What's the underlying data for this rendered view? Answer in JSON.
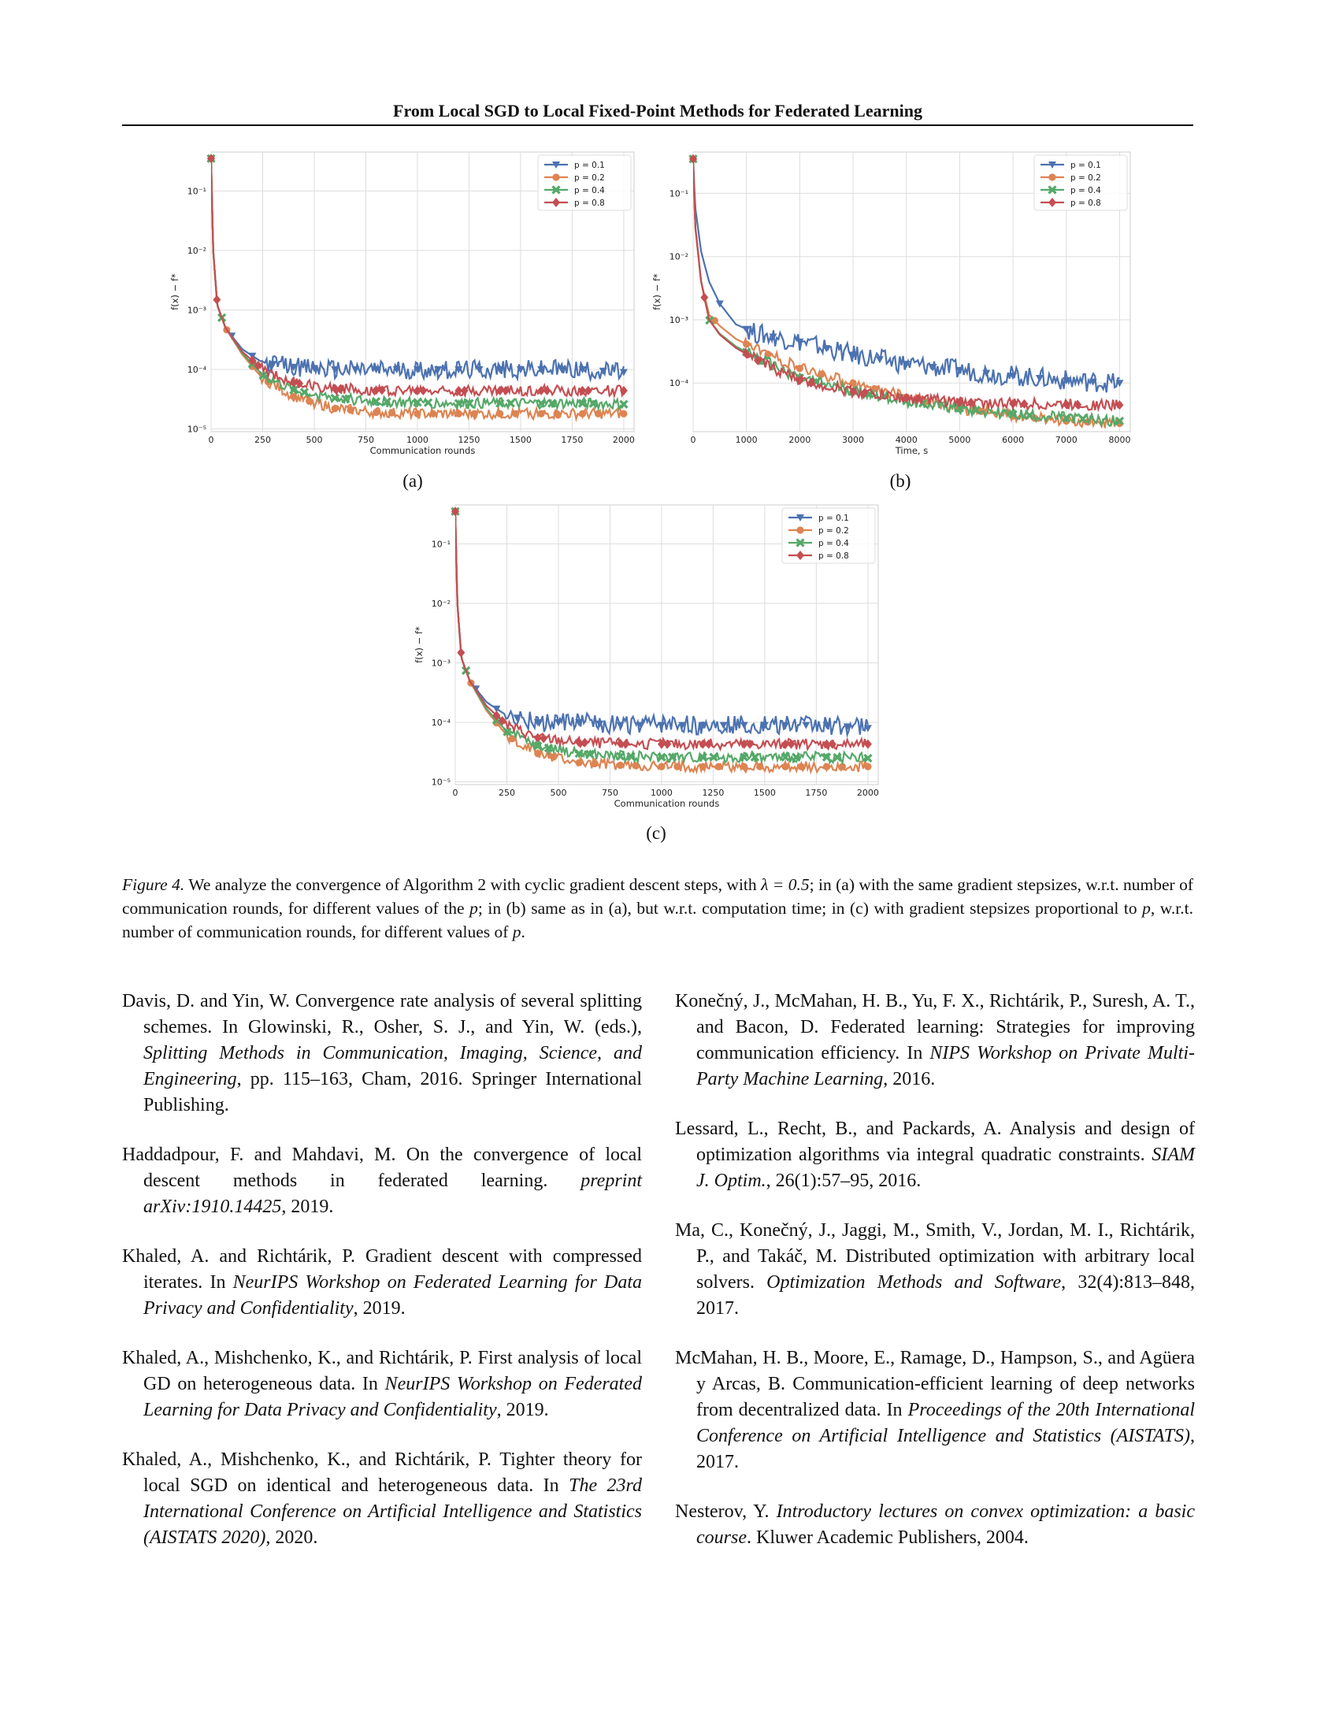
{
  "header": {
    "title": "From Local SGD to Local Fixed-Point Methods for Federated Learning"
  },
  "colors": {
    "p01": "#4c72b0",
    "p02": "#dd8452",
    "p04": "#55a868",
    "p08": "#c44e52",
    "grid": "#dddddd",
    "frame": "#cccccc"
  },
  "icons": {
    "p01": "triangle-down-marker",
    "p02": "circle-marker",
    "p04": "x-marker",
    "p08": "diamond-marker"
  },
  "figures": {
    "a": {
      "sublabel": "(a)"
    },
    "b": {
      "sublabel": "(b)"
    },
    "c": {
      "sublabel": "(c)"
    }
  },
  "chart_data": [
    {
      "id": "a",
      "type": "line",
      "title": "",
      "xlabel": "Communication rounds",
      "ylabel": "f(x) − f*",
      "yscale": "log",
      "xlim": [
        0,
        2050
      ],
      "ylim": [
        9e-06,
        0.45
      ],
      "xticks": [
        0,
        250,
        500,
        750,
        1000,
        1250,
        1500,
        1750,
        2000
      ],
      "yticks": [
        1e-05,
        0.0001,
        0.001,
        0.01,
        0.1
      ],
      "ytick_labels": [
        "10⁻⁵",
        "10⁻⁴",
        "10⁻³",
        "10⁻²",
        "10⁻¹"
      ],
      "grid": true,
      "legend_position": "top-right",
      "series": [
        {
          "name": "p = 0.1",
          "color": "#4c72b0",
          "marker": "triangle-down",
          "x": [
            0,
            10,
            30,
            70,
            150,
            250,
            400,
            600,
            800,
            1000,
            1200,
            1400,
            1600,
            1800,
            2000
          ],
          "y": [
            0.35,
            0.01,
            0.0012,
            0.0005,
            0.00022,
            0.00013,
            0.00011,
            0.0001,
            0.0001,
            0.0001,
            0.0001,
            0.0001,
            0.0001,
            0.0001,
            9e-05
          ]
        },
        {
          "name": "p = 0.2",
          "color": "#dd8452",
          "marker": "circle",
          "x": [
            0,
            10,
            30,
            70,
            150,
            250,
            400,
            600,
            800,
            1000,
            1200,
            1400,
            1600,
            1800,
            2000
          ],
          "y": [
            0.35,
            0.01,
            0.0012,
            0.0005,
            0.00018,
            7e-05,
            3.5e-05,
            2.2e-05,
            1.9e-05,
            1.8e-05,
            1.8e-05,
            1.8e-05,
            1.8e-05,
            1.8e-05,
            1.8e-05
          ]
        },
        {
          "name": "p = 0.4",
          "color": "#55a868",
          "marker": "x",
          "x": [
            0,
            10,
            30,
            70,
            150,
            250,
            400,
            600,
            800,
            1000,
            1200,
            1400,
            1600,
            1800,
            2000
          ],
          "y": [
            0.35,
            0.01,
            0.0012,
            0.0005,
            0.00019,
            8e-05,
            4.5e-05,
            3.3e-05,
            2.9e-05,
            2.8e-05,
            2.7e-05,
            2.7e-05,
            2.7e-05,
            2.7e-05,
            2.6e-05
          ]
        },
        {
          "name": "p = 0.8",
          "color": "#c44e52",
          "marker": "diamond",
          "x": [
            0,
            10,
            30,
            70,
            150,
            250,
            400,
            600,
            800,
            1000,
            1200,
            1400,
            1600,
            1800,
            2000
          ],
          "y": [
            0.35,
            0.01,
            0.0012,
            0.0005,
            0.0002,
            0.0001,
            6e-05,
            4.8e-05,
            4.5e-05,
            4.4e-05,
            4.4e-05,
            4.4e-05,
            4.4e-05,
            4.4e-05,
            4.4e-05
          ]
        }
      ]
    },
    {
      "id": "b",
      "type": "line",
      "title": "",
      "xlabel": "Time, s",
      "ylabel": "f(x) − f*",
      "yscale": "log",
      "xlim": [
        0,
        8200
      ],
      "ylim": [
        1.7e-05,
        0.45
      ],
      "xticks": [
        0,
        1000,
        2000,
        3000,
        4000,
        5000,
        6000,
        7000,
        8000
      ],
      "yticks": [
        0.0001,
        0.001,
        0.01,
        0.1
      ],
      "ytick_labels": [
        "10⁻⁴",
        "10⁻³",
        "10⁻²",
        "10⁻¹"
      ],
      "grid": true,
      "legend_position": "top-right",
      "series": [
        {
          "name": "p = 0.1",
          "color": "#4c72b0",
          "marker": "triangle-down",
          "x": [
            0,
            40,
            150,
            300,
            500,
            800,
            1200,
            2000,
            3000,
            4000,
            5000,
            6000,
            7000,
            8000
          ],
          "y": [
            0.35,
            0.06,
            0.012,
            0.004,
            0.0018,
            0.00085,
            0.0006,
            0.00045,
            0.00028,
            0.0002,
            0.00016,
            0.00013,
            0.00011,
            0.0001
          ]
        },
        {
          "name": "p = 0.2",
          "color": "#dd8452",
          "marker": "circle",
          "x": [
            0,
            40,
            150,
            300,
            500,
            800,
            1200,
            2000,
            3000,
            4000,
            5000,
            6000,
            7000,
            8000
          ],
          "y": [
            0.35,
            0.03,
            0.004,
            0.0012,
            0.0008,
            0.0005,
            0.00034,
            0.00017,
            0.0001,
            6e-05,
            4e-05,
            3e-05,
            2.5e-05,
            2.3e-05
          ]
        },
        {
          "name": "p = 0.4",
          "color": "#55a868",
          "marker": "x",
          "x": [
            0,
            40,
            150,
            300,
            500,
            800,
            1200,
            2000,
            3000,
            4000,
            5000,
            6000,
            7000,
            8000
          ],
          "y": [
            0.35,
            0.03,
            0.004,
            0.001,
            0.0006,
            0.00038,
            0.00025,
            0.00012,
            7.5e-05,
            5.2e-05,
            4e-05,
            3.2e-05,
            2.8e-05,
            2.5e-05
          ]
        },
        {
          "name": "p = 0.8",
          "color": "#c44e52",
          "marker": "diamond",
          "x": [
            0,
            40,
            150,
            300,
            500,
            800,
            1200,
            2000,
            3000,
            4000,
            5000,
            6000,
            7000,
            8000
          ],
          "y": [
            0.35,
            0.03,
            0.004,
            0.001,
            0.00058,
            0.00036,
            0.00023,
            0.00011,
            7.3e-05,
            5.8e-05,
            5e-05,
            4.7e-05,
            4.6e-05,
            4.5e-05
          ]
        }
      ]
    },
    {
      "id": "c",
      "type": "line",
      "title": "",
      "xlabel": "Communication rounds",
      "ylabel": "f(x) − f*",
      "yscale": "log",
      "xlim": [
        0,
        2050
      ],
      "ylim": [
        9e-06,
        0.45
      ],
      "xticks": [
        0,
        250,
        500,
        750,
        1000,
        1250,
        1500,
        1750,
        2000
      ],
      "yticks": [
        1e-05,
        0.0001,
        0.001,
        0.01,
        0.1
      ],
      "ytick_labels": [
        "10⁻⁵",
        "10⁻⁴",
        "10⁻³",
        "10⁻²",
        "10⁻¹"
      ],
      "grid": true,
      "legend_position": "top-right",
      "series": [
        {
          "name": "p = 0.1",
          "color": "#4c72b0",
          "marker": "triangle-down",
          "x": [
            0,
            10,
            30,
            70,
            150,
            250,
            400,
            600,
            800,
            1000,
            1200,
            1400,
            1600,
            1800,
            2000
          ],
          "y": [
            0.35,
            0.01,
            0.0012,
            0.0005,
            0.00022,
            0.00013,
            0.0001,
            0.0001,
            9e-05,
            9e-05,
            9e-05,
            9e-05,
            9e-05,
            9e-05,
            8e-05
          ]
        },
        {
          "name": "p = 0.2",
          "color": "#dd8452",
          "marker": "circle",
          "x": [
            0,
            10,
            30,
            70,
            150,
            250,
            400,
            600,
            800,
            1000,
            1200,
            1400,
            1600,
            1800,
            2000
          ],
          "y": [
            0.35,
            0.01,
            0.0012,
            0.0005,
            0.00016,
            6e-05,
            3e-05,
            2.1e-05,
            1.9e-05,
            1.8e-05,
            1.8e-05,
            1.8e-05,
            1.8e-05,
            1.8e-05,
            1.8e-05
          ]
        },
        {
          "name": "p = 0.4",
          "color": "#55a868",
          "marker": "x",
          "x": [
            0,
            10,
            30,
            70,
            150,
            250,
            400,
            600,
            800,
            1000,
            1200,
            1400,
            1600,
            1800,
            2000
          ],
          "y": [
            0.35,
            0.01,
            0.0012,
            0.0005,
            0.00017,
            7e-05,
            4e-05,
            3e-05,
            2.7e-05,
            2.6e-05,
            2.6e-05,
            2.6e-05,
            2.6e-05,
            2.6e-05,
            2.5e-05
          ]
        },
        {
          "name": "p = 0.8",
          "color": "#c44e52",
          "marker": "diamond",
          "x": [
            0,
            10,
            30,
            70,
            150,
            250,
            400,
            600,
            800,
            1000,
            1200,
            1400,
            1600,
            1800,
            2000
          ],
          "y": [
            0.35,
            0.01,
            0.0012,
            0.0005,
            0.00019,
            9e-05,
            5.5e-05,
            4.6e-05,
            4.4e-05,
            4.3e-05,
            4.3e-05,
            4.3e-05,
            4.3e-05,
            4.3e-05,
            4.3e-05
          ]
        }
      ]
    }
  ],
  "caption": {
    "label": "Figure 4.",
    "part1": " We analyze the convergence of Algorithm 2 with cyclic gradient descent steps, with ",
    "lambda": "λ = 0.5",
    "part2": "; in (a) with the same gradient stepsizes, w.r.t. number of communication rounds, for different values of the ",
    "p1": "p",
    "part3": "; in (b) same as in (a), but w.r.t. computation time; in (c) with gradient stepsizes proportional to ",
    "p2": "p",
    "part4": ", w.r.t. number of communication rounds, for different values of ",
    "p3": "p",
    "part5": "."
  },
  "references": {
    "left": [
      {
        "pre": "Davis, D. and Yin, W. Convergence rate analysis of several splitting schemes. In Glowinski, R., Osher, S. J., and Yin, W. (eds.), ",
        "ital": "Splitting Methods in Communication, Imaging, Science, and Engineering",
        "post": ", pp. 115–163, Cham, 2016. Springer International Publishing."
      },
      {
        "pre": "Haddadpour, F. and Mahdavi, M. On the convergence of local descent methods in federated learning. ",
        "ital": "preprint arXiv:1910.14425",
        "post": ", 2019."
      },
      {
        "pre": "Khaled, A. and Richtárik, P. Gradient descent with compressed iterates. In ",
        "ital": "NeurIPS Workshop on Federated Learning for Data Privacy and Confidentiality",
        "post": ", 2019."
      },
      {
        "pre": "Khaled, A., Mishchenko, K., and Richtárik, P. First analysis of local GD on heterogeneous data. In ",
        "ital": "NeurIPS Workshop on Federated Learning for Data Privacy and Confidentiality",
        "post": ", 2019."
      },
      {
        "pre": "Khaled, A., Mishchenko, K., and Richtárik, P. Tighter theory for local SGD on identical and heterogeneous data. In ",
        "ital": "The 23rd International Conference on Artificial Intelligence and Statistics (AISTATS 2020)",
        "post": ", 2020."
      }
    ],
    "right": [
      {
        "pre": "Konečný, J., McMahan, H. B., Yu, F. X., Richtárik, P., Suresh, A. T., and Bacon, D. Federated learning: Strategies for improving communication efficiency. In ",
        "ital": "NIPS Workshop on Private Multi-Party Machine Learning",
        "post": ", 2016."
      },
      {
        "pre": "Lessard, L., Recht, B., and Packards, A. Analysis and design of optimization algorithms via integral quadratic constraints. ",
        "ital": "SIAM J. Optim.",
        "post": ", 26(1):57–95, 2016."
      },
      {
        "pre": "Ma, C., Konečný, J., Jaggi, M., Smith, V., Jordan, M. I., Richtárik, P., and Takáč, M. Distributed optimization with arbitrary local solvers. ",
        "ital": "Optimization Methods and Software",
        "post": ", 32(4):813–848, 2017."
      },
      {
        "pre": "McMahan, H. B., Moore, E., Ramage, D., Hampson, S., and Agüera y Arcas, B. Communication-efficient learning of deep networks from decentralized data. In ",
        "ital": "Proceedings of the 20th International Conference on Artificial Intelligence and Statistics (AISTATS)",
        "post": ", 2017."
      },
      {
        "pre": "Nesterov, Y. ",
        "ital": "Introductory lectures on convex optimization: a basic course",
        "post": ". Kluwer Academic Publishers, 2004."
      }
    ]
  }
}
